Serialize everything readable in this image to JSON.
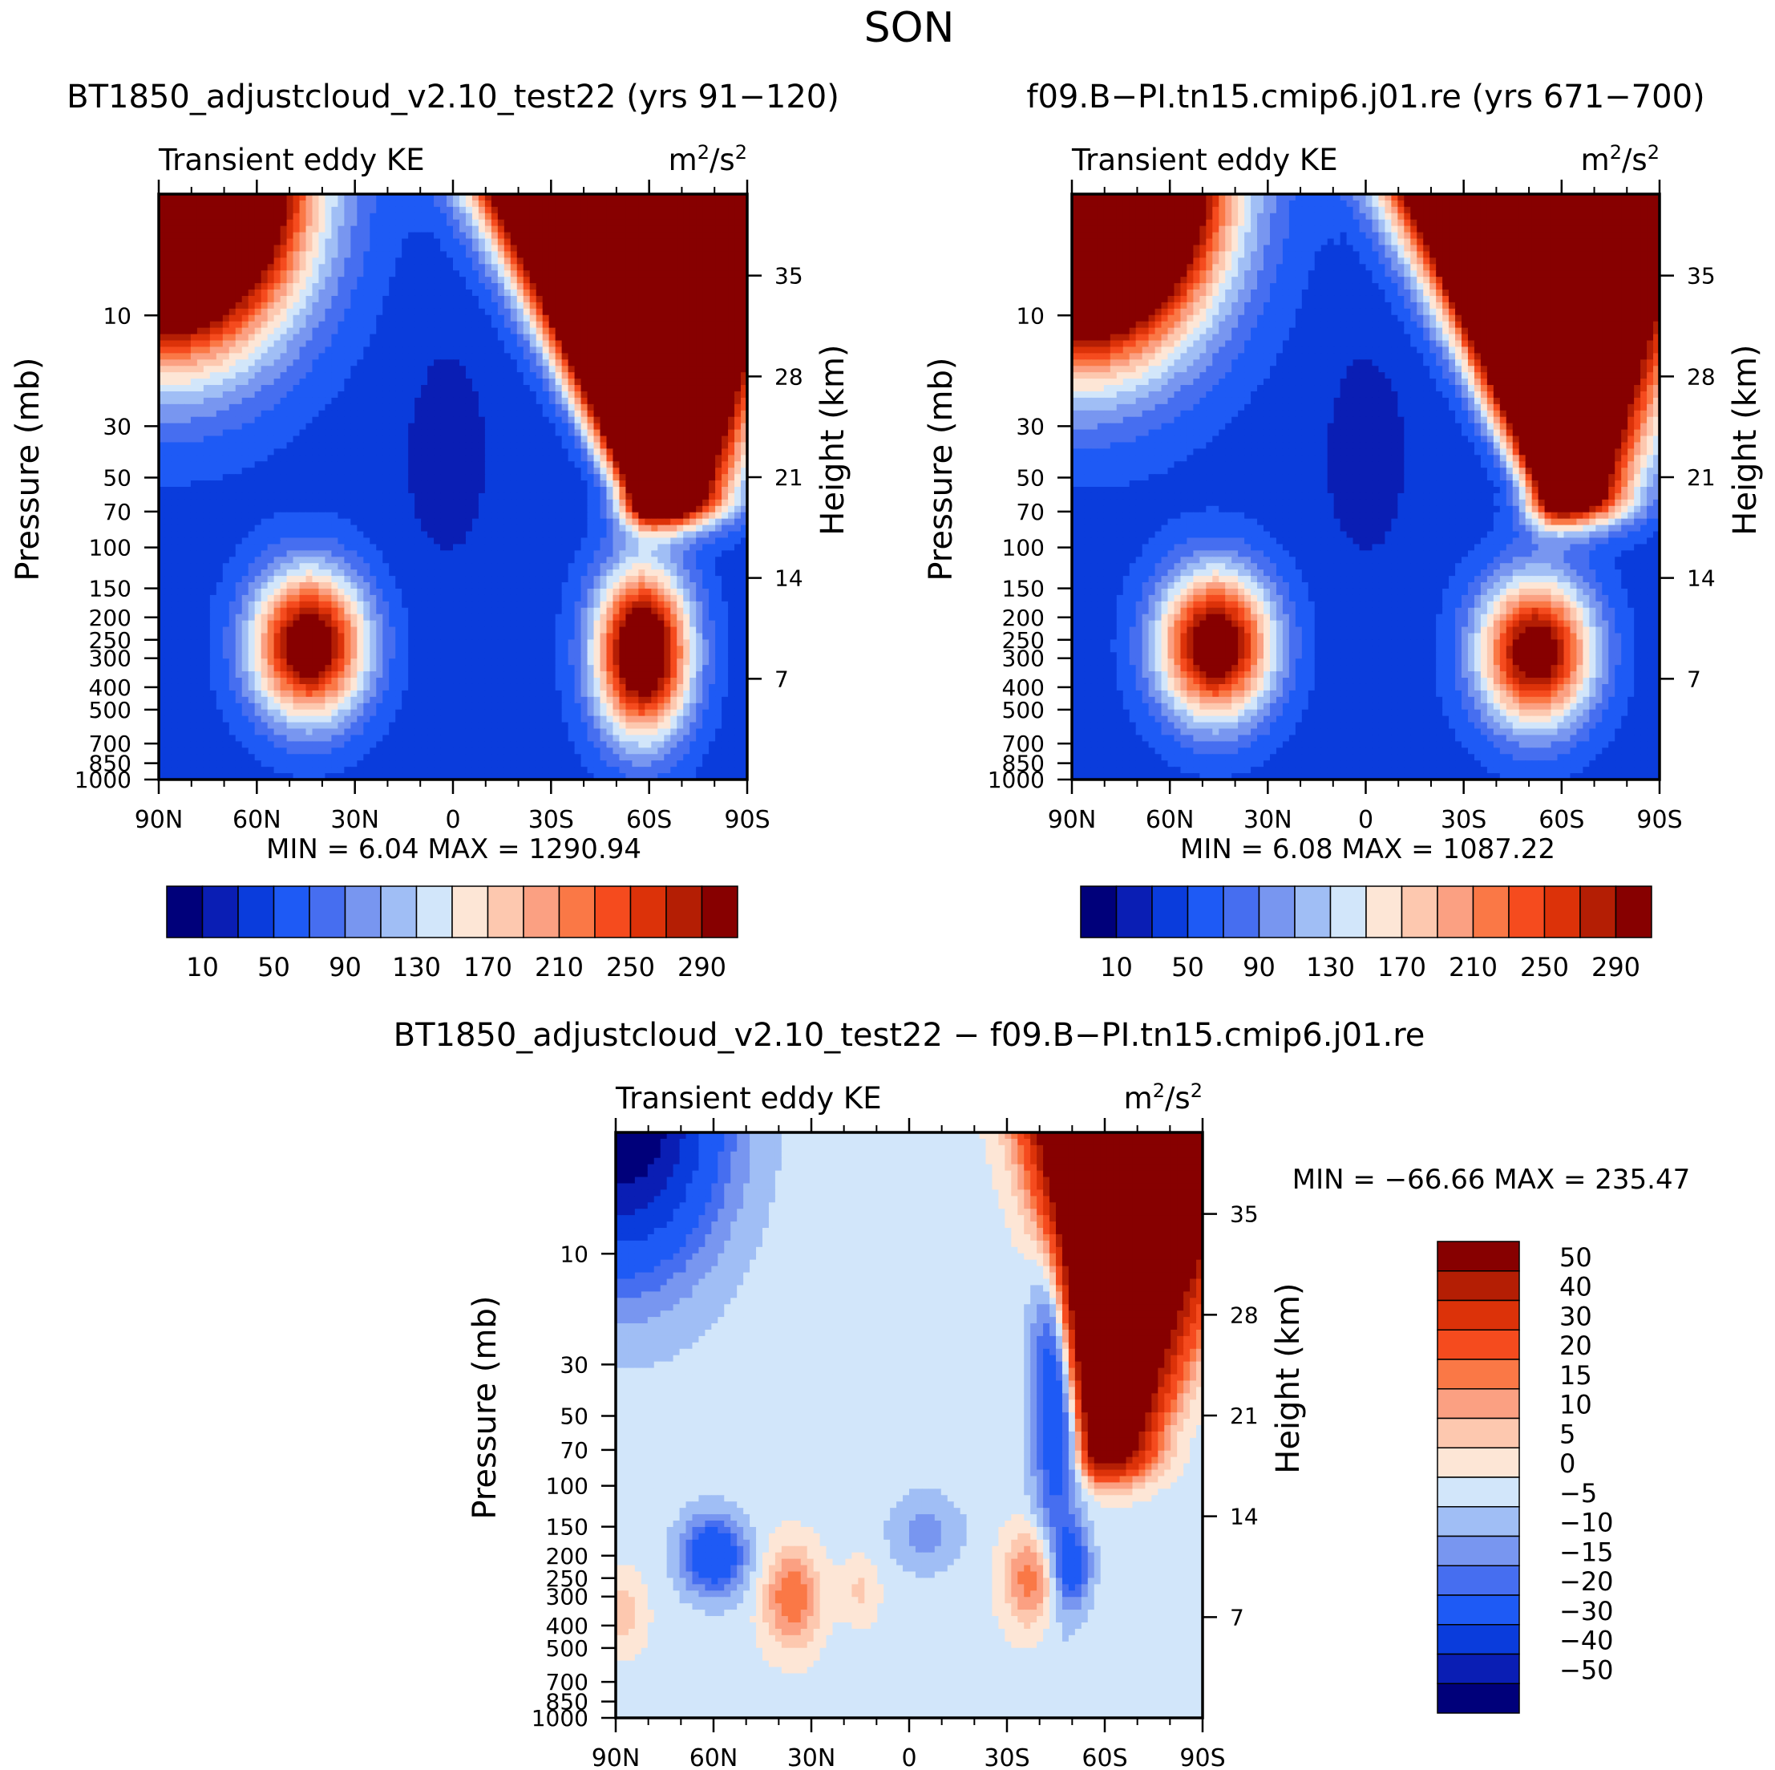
{
  "figure_title": "SON",
  "colors": {
    "base_palette": [
      "#00007a",
      "#0a1eb4",
      "#0a3cdc",
      "#1e5af5",
      "#466ef0",
      "#7896f0",
      "#a0bef5",
      "#d2e6fa",
      "#fde6d6",
      "#fdc8af",
      "#fba082",
      "#fa7846",
      "#f54b1e",
      "#dc3209",
      "#b41e04",
      "#870000"
    ],
    "diff_palette": [
      "#00007a",
      "#0a1eb4",
      "#0a3cdc",
      "#1e5af5",
      "#466ef0",
      "#7896f0",
      "#a0bef5",
      "#d2e6fa",
      "#fde6d6",
      "#fdc8af",
      "#fba082",
      "#fa7846",
      "#f54b1e",
      "#dc3209",
      "#b41e04",
      "#870000"
    ]
  },
  "chart_data": [
    {
      "id": "panel1",
      "type": "heatmap",
      "title": "BT1850_adjustcloud_v2.10_test22 (yrs 91-120)",
      "left_title": "Transient eddy KE",
      "unit_base": "m",
      "unit_exp": "2",
      "unit_tail": "/s",
      "xlabel": "",
      "ylabel": "Pressure (mb)",
      "ylabel_right": "Height (km)",
      "x_ticks": [
        "90N",
        "60N",
        "30N",
        "0",
        "30S",
        "60S",
        "90S"
      ],
      "x_values": [
        90,
        60,
        30,
        0,
        -30,
        -60,
        -90
      ],
      "y_ticks": [
        "10",
        "30",
        "50",
        "70",
        "100",
        "150",
        "200",
        "250",
        "300",
        "400",
        "500",
        "700",
        "850",
        "1000"
      ],
      "y_values": [
        10,
        30,
        50,
        70,
        100,
        150,
        200,
        250,
        300,
        400,
        500,
        700,
        850,
        1000
      ],
      "ylim": [
        3,
        1000
      ],
      "height_ticks": [
        "35",
        "28",
        "21",
        "14",
        "7"
      ],
      "height_values": [
        35,
        28,
        21,
        14,
        7
      ],
      "min_label": "MIN =",
      "min_value": "6.04",
      "max_label": "MAX =",
      "max_value": "1290.94",
      "levels": [
        10,
        30,
        50,
        70,
        90,
        110,
        130,
        150,
        170,
        190,
        210,
        230,
        250,
        270,
        290
      ],
      "colorbar_labels": [
        "10",
        "50",
        "90",
        "130",
        "170",
        "210",
        "250",
        "290"
      ],
      "features": [
        {
          "kind": "gauss",
          "lat": -58,
          "logp": 2.45,
          "sigma_lat": 10,
          "sigma_logp": 0.25,
          "amp": 330
        },
        {
          "kind": "gauss",
          "lat": 44,
          "logp": 2.42,
          "sigma_lat": 12,
          "sigma_logp": 0.22,
          "amp": 300
        },
        {
          "kind": "vjet",
          "lat_top": -42,
          "lat_bottom": -62,
          "logp_top": 0.4,
          "logp_bottom": 1.75,
          "width": 12,
          "amp": 1200
        },
        {
          "kind": "cap",
          "lat_center": 88,
          "logp_top": 0.4,
          "reach": 50,
          "amp": 800
        },
        {
          "kind": "dip",
          "lat": 2,
          "logp": 1.6,
          "sigma_lat": 10,
          "sigma_logp": 0.35,
          "amp": -20
        }
      ],
      "background": 40
    },
    {
      "id": "panel2",
      "type": "heatmap",
      "title": "f09.B-PI.tn15.cmip6.j01.re (yrs 671-700)",
      "left_title": "Transient eddy KE",
      "unit_base": "m",
      "unit_exp": "2",
      "unit_tail": "/s",
      "xlabel": "",
      "ylabel": "Pressure (mb)",
      "ylabel_right": "Height (km)",
      "x_ticks": [
        "90N",
        "60N",
        "30N",
        "0",
        "30S",
        "60S",
        "90S"
      ],
      "x_values": [
        90,
        60,
        30,
        0,
        -30,
        -60,
        -90
      ],
      "y_ticks": [
        "10",
        "30",
        "50",
        "70",
        "100",
        "150",
        "200",
        "250",
        "300",
        "400",
        "500",
        "700",
        "850",
        "1000"
      ],
      "y_values": [
        10,
        30,
        50,
        70,
        100,
        150,
        200,
        250,
        300,
        400,
        500,
        700,
        850,
        1000
      ],
      "ylim": [
        3,
        1000
      ],
      "height_ticks": [
        "35",
        "28",
        "21",
        "14",
        "7"
      ],
      "height_values": [
        35,
        28,
        21,
        14,
        7
      ],
      "min_label": "MIN =",
      "min_value": "6.08",
      "max_label": "MAX =",
      "max_value": "1087.22",
      "levels": [
        10,
        30,
        50,
        70,
        90,
        110,
        130,
        150,
        170,
        190,
        210,
        230,
        250,
        270,
        290
      ],
      "colorbar_labels": [
        "10",
        "50",
        "90",
        "130",
        "170",
        "210",
        "250",
        "290"
      ],
      "features": [
        {
          "kind": "gauss",
          "lat": -52,
          "logp": 2.45,
          "sigma_lat": 12,
          "sigma_logp": 0.22,
          "amp": 290
        },
        {
          "kind": "gauss",
          "lat": 46,
          "logp": 2.42,
          "sigma_lat": 12,
          "sigma_logp": 0.22,
          "amp": 300
        },
        {
          "kind": "vjet",
          "lat_top": -40,
          "lat_bottom": -60,
          "logp_top": 0.4,
          "logp_bottom": 1.75,
          "width": 12,
          "amp": 1000
        },
        {
          "kind": "cap",
          "lat_center": 88,
          "logp_top": 0.4,
          "reach": 50,
          "amp": 900
        },
        {
          "kind": "dip",
          "lat": 0,
          "logp": 1.6,
          "sigma_lat": 10,
          "sigma_logp": 0.35,
          "amp": -20
        }
      ],
      "background": 40
    },
    {
      "id": "panel3",
      "type": "heatmap",
      "title": "BT1850_adjustcloud_v2.10_test22 - f09.B-PI.tn15.cmip6.j01.re",
      "left_title": "Transient eddy KE",
      "unit_base": "m",
      "unit_exp": "2",
      "unit_tail": "/s",
      "xlabel": "",
      "ylabel": "Pressure (mb)",
      "ylabel_right": "Height (km)",
      "x_ticks": [
        "90N",
        "60N",
        "30N",
        "0",
        "30S",
        "60S",
        "90S"
      ],
      "x_values": [
        90,
        60,
        30,
        0,
        -30,
        -60,
        -90
      ],
      "y_ticks": [
        "10",
        "30",
        "50",
        "70",
        "100",
        "150",
        "200",
        "250",
        "300",
        "400",
        "500",
        "700",
        "850",
        "1000"
      ],
      "y_values": [
        10,
        30,
        50,
        70,
        100,
        150,
        200,
        250,
        300,
        400,
        500,
        700,
        850,
        1000
      ],
      "ylim": [
        3,
        1000
      ],
      "height_ticks": [
        "35",
        "28",
        "21",
        "14",
        "7"
      ],
      "height_values": [
        35,
        28,
        21,
        14,
        7
      ],
      "min_label": "MIN =",
      "min_value": "-66.66",
      "max_label": "MAX =",
      "max_value": "235.47",
      "levels": [
        -50,
        -40,
        -30,
        -20,
        -15,
        -10,
        -5,
        0,
        5,
        10,
        15,
        20,
        30,
        40,
        50
      ],
      "colorbar_labels": [
        "50",
        "40",
        "30",
        "20",
        "15",
        "10",
        "5",
        "0",
        "-5",
        "-10",
        "-15",
        "-20",
        "-30",
        "-40",
        "-50"
      ],
      "features": [
        {
          "kind": "cap",
          "lat_center": 88,
          "logp_top": 0.4,
          "reach": 40,
          "amp": -60
        },
        {
          "kind": "vjet",
          "lat_top": -60,
          "lat_bottom": -60,
          "logp_top": 0.4,
          "logp_bottom": 1.8,
          "width": 8,
          "amp": 240
        },
        {
          "kind": "gauss",
          "lat": -50,
          "logp": 2.35,
          "sigma_lat": 4,
          "sigma_logp": 0.12,
          "amp": -22
        },
        {
          "kind": "gauss",
          "lat": -38,
          "logp": 2.4,
          "sigma_lat": 6,
          "sigma_logp": 0.15,
          "amp": 22
        },
        {
          "kind": "gauss",
          "lat": -45,
          "logp": 1.5,
          "sigma_lat": 5,
          "sigma_logp": 0.6,
          "amp": -28
        },
        {
          "kind": "gauss",
          "lat": 36,
          "logp": 2.48,
          "sigma_lat": 6,
          "sigma_logp": 0.15,
          "amp": 22
        },
        {
          "kind": "gauss",
          "lat": 60,
          "logp": 2.3,
          "sigma_lat": 7,
          "sigma_logp": 0.12,
          "amp": -28
        },
        {
          "kind": "gauss",
          "lat": -5,
          "logp": 2.2,
          "sigma_lat": 8,
          "sigma_logp": 0.12,
          "amp": -10
        },
        {
          "kind": "gauss",
          "lat": 88,
          "logp": 2.55,
          "sigma_lat": 5,
          "sigma_logp": 0.12,
          "amp": 10
        },
        {
          "kind": "gauss",
          "lat": 15,
          "logp": 2.45,
          "sigma_lat": 4,
          "sigma_logp": 0.1,
          "amp": 8
        }
      ],
      "background": -2
    }
  ]
}
